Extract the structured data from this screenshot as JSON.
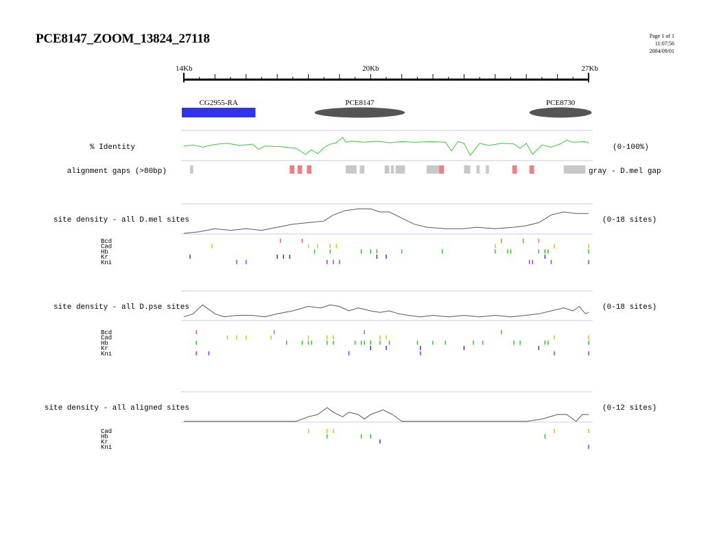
{
  "header": {
    "title": "PCE8147_ZOOM_13824_27118",
    "page": "Page 1 of 1",
    "time": "11:07:56",
    "date": "2004/09/01"
  },
  "ruler": {
    "start_kb": 14,
    "end_kb": 27,
    "labels": [
      {
        "text": "14Kb",
        "kb": 14
      },
      {
        "text": "20Kb",
        "kb": 20
      },
      {
        "text": "27Kb",
        "kb": 27
      }
    ]
  },
  "features": [
    {
      "name": "CG2955-RA",
      "shape": "rect",
      "color": "#3333ee",
      "start_kb": 14.0,
      "end_kb": 16.3
    },
    {
      "name": "PCE8147",
      "shape": "ellipse",
      "color": "#555555",
      "start_kb": 18.2,
      "end_kb": 21.1
    },
    {
      "name": "PCE8730",
      "shape": "ellipse",
      "color": "#555555",
      "start_kb": 25.1,
      "end_kb": 27.1
    }
  ],
  "identity": {
    "label": "% Identity",
    "range": "(0-100%)",
    "color": "#33cc33",
    "points": [
      [
        14.0,
        48
      ],
      [
        14.3,
        52
      ],
      [
        14.6,
        44
      ],
      [
        15.0,
        54
      ],
      [
        15.4,
        58
      ],
      [
        15.8,
        50
      ],
      [
        16.2,
        55
      ],
      [
        16.4,
        36
      ],
      [
        16.6,
        48
      ],
      [
        17.1,
        46
      ],
      [
        17.4,
        42
      ],
      [
        17.6,
        40
      ],
      [
        17.9,
        18
      ],
      [
        18.1,
        34
      ],
      [
        18.3,
        20
      ],
      [
        18.5,
        42
      ],
      [
        18.7,
        55
      ],
      [
        18.9,
        60
      ],
      [
        19.1,
        80
      ],
      [
        19.2,
        62
      ],
      [
        19.4,
        66
      ],
      [
        19.8,
        62
      ],
      [
        20.2,
        66
      ],
      [
        20.6,
        60
      ],
      [
        21.0,
        64
      ],
      [
        21.4,
        62
      ],
      [
        22.0,
        64
      ],
      [
        22.4,
        62
      ],
      [
        22.6,
        30
      ],
      [
        22.8,
        64
      ],
      [
        23.0,
        58
      ],
      [
        23.2,
        14
      ],
      [
        23.5,
        58
      ],
      [
        23.8,
        50
      ],
      [
        24.2,
        58
      ],
      [
        24.6,
        56
      ],
      [
        24.8,
        40
      ],
      [
        25.0,
        58
      ],
      [
        25.2,
        18
      ],
      [
        25.5,
        52
      ],
      [
        25.8,
        44
      ],
      [
        26.1,
        56
      ],
      [
        26.3,
        70
      ],
      [
        26.5,
        62
      ],
      [
        26.9,
        64
      ],
      [
        27.0,
        58
      ]
    ]
  },
  "gaps": {
    "label": "alignment gaps (>80bp)",
    "legend": "gray - D.mel gap",
    "gray_color": "#c8c8c8",
    "pink_color": "#f08080",
    "blocks": [
      {
        "start": 14.2,
        "end": 14.3,
        "type": "gray"
      },
      {
        "start": 17.4,
        "end": 17.55,
        "type": "pink"
      },
      {
        "start": 17.65,
        "end": 17.8,
        "type": "pink"
      },
      {
        "start": 17.95,
        "end": 18.1,
        "type": "pink"
      },
      {
        "start": 19.2,
        "end": 19.55,
        "type": "gray"
      },
      {
        "start": 19.65,
        "end": 19.8,
        "type": "gray"
      },
      {
        "start": 20.45,
        "end": 20.6,
        "type": "gray"
      },
      {
        "start": 20.65,
        "end": 20.75,
        "type": "gray"
      },
      {
        "start": 20.8,
        "end": 21.1,
        "type": "gray"
      },
      {
        "start": 21.8,
        "end": 22.2,
        "type": "gray"
      },
      {
        "start": 22.2,
        "end": 22.35,
        "type": "pink"
      },
      {
        "start": 23.0,
        "end": 23.2,
        "type": "gray"
      },
      {
        "start": 23.4,
        "end": 23.5,
        "type": "gray"
      },
      {
        "start": 23.7,
        "end": 23.8,
        "type": "gray"
      },
      {
        "start": 24.55,
        "end": 24.7,
        "type": "pink"
      },
      {
        "start": 25.1,
        "end": 25.25,
        "type": "pink"
      },
      {
        "start": 26.2,
        "end": 26.9,
        "type": "gray"
      }
    ]
  },
  "density_sections": [
    {
      "label": "site density - all D.mel sites",
      "range": "(0-18 sites)",
      "points": [
        [
          14.0,
          0
        ],
        [
          14.5,
          1
        ],
        [
          15.0,
          3
        ],
        [
          15.5,
          2
        ],
        [
          16.0,
          3
        ],
        [
          16.5,
          2
        ],
        [
          17.0,
          4
        ],
        [
          17.5,
          6
        ],
        [
          18.0,
          7
        ],
        [
          18.5,
          8
        ],
        [
          18.8,
          12
        ],
        [
          19.2,
          15
        ],
        [
          19.6,
          16
        ],
        [
          20.0,
          16
        ],
        [
          20.3,
          14
        ],
        [
          20.6,
          14
        ],
        [
          21.0,
          10
        ],
        [
          21.4,
          6
        ],
        [
          21.8,
          4
        ],
        [
          22.4,
          3
        ],
        [
          23.0,
          3
        ],
        [
          23.4,
          4
        ],
        [
          24.0,
          3
        ],
        [
          24.6,
          4
        ],
        [
          25.0,
          5
        ],
        [
          25.4,
          7
        ],
        [
          25.8,
          12
        ],
        [
          26.2,
          14
        ],
        [
          26.6,
          13
        ],
        [
          27.0,
          13
        ]
      ],
      "tracks": [
        {
          "name": "Bcd",
          "color": "#ff6633",
          "ticks": [
            17.1,
            17.8,
            24.2,
            24.9,
            25.4
          ]
        },
        {
          "name": "Cad",
          "color": "#cccc00",
          "ticks": [
            14.9,
            18.0,
            18.3,
            18.7,
            18.9,
            24.0,
            25.9,
            27.0
          ]
        },
        {
          "name": "Hb",
          "color": "#22cc22",
          "ticks": [
            18.2,
            18.7,
            19.7,
            20.0,
            20.2,
            21.0,
            22.3,
            24.0,
            24.4,
            24.5,
            25.4,
            25.6,
            25.7,
            27.0
          ]
        },
        {
          "name": "Kr",
          "color": "#3333cc",
          "ticks": [
            14.2,
            17.0,
            17.2,
            17.4,
            20.2,
            20.5,
            25.6
          ]
        },
        {
          "name": "Kni",
          "color": "#9933ff",
          "ticks": [
            15.7,
            16.0,
            18.6,
            18.8,
            19.0,
            25.1,
            25.2,
            25.8,
            27.0
          ]
        }
      ]
    },
    {
      "label": "site density - all D.pse sites",
      "range": "(0-18 sites)",
      "points": [
        [
          14.0,
          2
        ],
        [
          14.3,
          4
        ],
        [
          14.6,
          10
        ],
        [
          15.0,
          4
        ],
        [
          15.3,
          2
        ],
        [
          15.7,
          3
        ],
        [
          16.2,
          3
        ],
        [
          16.6,
          2
        ],
        [
          17.0,
          4
        ],
        [
          17.5,
          6
        ],
        [
          18.0,
          9
        ],
        [
          18.4,
          8
        ],
        [
          18.7,
          10
        ],
        [
          19.0,
          9
        ],
        [
          19.3,
          6
        ],
        [
          19.6,
          8
        ],
        [
          20.0,
          6
        ],
        [
          20.3,
          5
        ],
        [
          20.6,
          6
        ],
        [
          20.9,
          4
        ],
        [
          21.2,
          3
        ],
        [
          21.6,
          2
        ],
        [
          22.0,
          3
        ],
        [
          22.5,
          2
        ],
        [
          23.0,
          3
        ],
        [
          23.5,
          2
        ],
        [
          24.0,
          3
        ],
        [
          24.5,
          2
        ],
        [
          25.0,
          3
        ],
        [
          25.4,
          4
        ],
        [
          25.8,
          6
        ],
        [
          26.2,
          8
        ],
        [
          26.5,
          6
        ],
        [
          26.7,
          9
        ],
        [
          26.9,
          4
        ],
        [
          27.0,
          5
        ]
      ],
      "tracks": [
        {
          "name": "Bcd",
          "color": "#ff6633",
          "ticks": [
            14.4,
            16.9,
            19.8,
            24.2
          ]
        },
        {
          "name": "Cad",
          "color": "#cccc00",
          "ticks": [
            15.4,
            15.7,
            16.0,
            16.8,
            18.0,
            18.6,
            18.8,
            20.3,
            20.5,
            25.9,
            27.0
          ]
        },
        {
          "name": "Hb",
          "color": "#22cc22",
          "ticks": [
            14.4,
            17.3,
            17.8,
            18.0,
            18.1,
            18.6,
            18.8,
            19.5,
            19.7,
            19.8,
            20.0,
            20.3,
            20.6,
            21.5,
            22.0,
            22.4,
            23.3,
            23.6,
            24.6,
            24.8,
            25.6,
            25.7,
            27.0
          ]
        },
        {
          "name": "Kr",
          "color": "#3333cc",
          "ticks": [
            20.0,
            20.5,
            21.6,
            23.0,
            25.4
          ]
        },
        {
          "name": "Kni",
          "color": "#9933ff",
          "ticks": [
            14.4,
            14.8,
            19.3,
            21.6,
            25.9,
            27.0
          ]
        }
      ]
    },
    {
      "label": "site density - all aligned sites",
      "range": "(0-12 sites)",
      "points": [
        [
          14.0,
          0
        ],
        [
          17.0,
          0
        ],
        [
          17.6,
          0
        ],
        [
          18.0,
          2
        ],
        [
          18.3,
          3
        ],
        [
          18.6,
          6
        ],
        [
          18.8,
          4
        ],
        [
          19.1,
          2
        ],
        [
          19.3,
          4
        ],
        [
          19.6,
          3
        ],
        [
          19.8,
          1
        ],
        [
          20.0,
          3
        ],
        [
          20.4,
          5
        ],
        [
          20.7,
          3
        ],
        [
          21.0,
          0
        ],
        [
          22.0,
          0
        ],
        [
          24.0,
          0
        ],
        [
          25.0,
          0
        ],
        [
          25.5,
          1
        ],
        [
          26.0,
          3
        ],
        [
          26.3,
          3
        ],
        [
          26.6,
          0
        ],
        [
          26.8,
          3
        ],
        [
          27.0,
          3
        ]
      ],
      "tracks": [
        {
          "name": "Cad",
          "color": "#cccc00",
          "ticks": [
            18.0,
            18.6,
            18.8,
            25.9,
            27.0
          ]
        },
        {
          "name": "Hb",
          "color": "#22cc22",
          "ticks": [
            18.6,
            19.7,
            20.0,
            25.6
          ]
        },
        {
          "name": "Kr",
          "color": "#3333cc",
          "ticks": [
            20.3
          ]
        },
        {
          "name": "Kni",
          "color": "#9933ff",
          "ticks": [
            27.0
          ]
        }
      ]
    }
  ]
}
